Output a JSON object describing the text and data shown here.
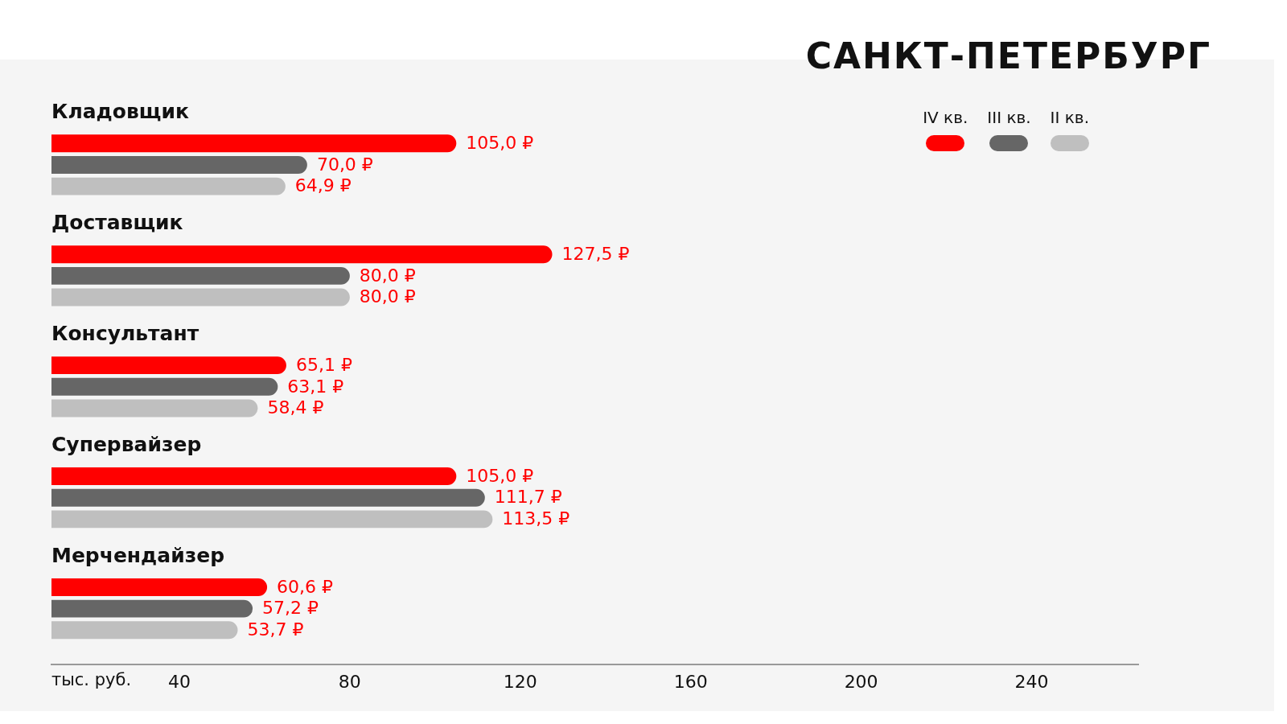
{
  "chart_data": {
    "type": "bar",
    "orientation": "horizontal",
    "title": "САНКТ-ПЕТЕРБУРГ",
    "xlabel": "тыс. руб.",
    "categories": [
      "Кладовщик",
      "Доставщик",
      "Консультант",
      "Супервайзер",
      "Мерчендайзер"
    ],
    "series": [
      {
        "name": "IV кв.",
        "color": "#ff0000",
        "values": [
          105.0,
          127.5,
          65.1,
          105.0,
          60.6
        ],
        "value_labels": [
          "105,0 ₽",
          "127,5 ₽",
          "65,1 ₽",
          "105,0 ₽",
          "60,6 ₽"
        ]
      },
      {
        "name": "III кв.",
        "color": "#666666",
        "values": [
          70.0,
          80.0,
          63.1,
          111.7,
          57.2
        ],
        "value_labels": [
          "70,0 ₽",
          "80,0 ₽",
          "63,1 ₽",
          "111,7 ₽",
          "57,2 ₽"
        ]
      },
      {
        "name": "II кв.",
        "color": "#bfbfbf",
        "values": [
          64.9,
          80.0,
          58.4,
          113.5,
          53.7
        ],
        "value_labels": [
          "64,9 ₽",
          "80,0 ₽",
          "58,4 ₽",
          "113,5 ₽",
          "53,7 ₽"
        ]
      }
    ],
    "xlim": [
      10,
      265
    ],
    "xticks": [
      40,
      80,
      120,
      160,
      200,
      240
    ],
    "grid": false,
    "legend": "top right"
  }
}
